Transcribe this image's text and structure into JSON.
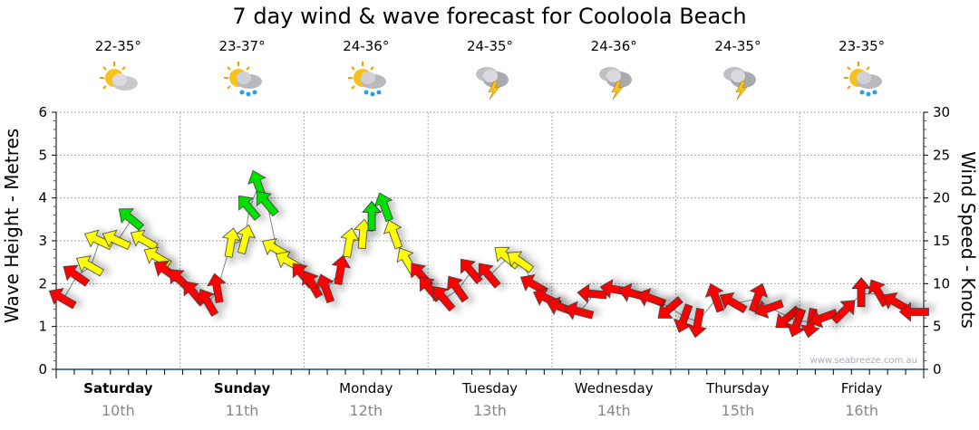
{
  "chart_data": {
    "type": "scatter",
    "title": "7 day wind & wave forecast for Cooloola Beach",
    "ylabel": "Wave Height - Metres",
    "y2label": "Wind Speed - Knots",
    "ylim": [
      0,
      6
    ],
    "y2lim": [
      0,
      30
    ],
    "yticks": [
      "0",
      "1",
      "2",
      "3",
      "4",
      "5",
      "6"
    ],
    "y2ticks": [
      "0",
      "5",
      "10",
      "15",
      "20",
      "25",
      "30"
    ],
    "xlim_hours": [
      0,
      168
    ],
    "grid": true,
    "watermark": "www.seabreeze.com.au",
    "days": [
      {
        "name": "Saturday",
        "date": "10th",
        "bold": true,
        "temp": "22-35°",
        "icon": "partly-cloudy-icon"
      },
      {
        "name": "Sunday",
        "date": "11th",
        "bold": true,
        "temp": "23-37°",
        "icon": "sun-rain-icon"
      },
      {
        "name": "Monday",
        "date": "12th",
        "bold": false,
        "temp": "24-36°",
        "icon": "sun-rain-icon"
      },
      {
        "name": "Tuesday",
        "date": "13th",
        "bold": false,
        "temp": "24-35°",
        "icon": "thunderstorm-icon"
      },
      {
        "name": "Wednesday",
        "date": "14th",
        "bold": false,
        "temp": "24-36°",
        "icon": "thunderstorm-icon"
      },
      {
        "name": "Thursday",
        "date": "15th",
        "bold": false,
        "temp": "24-35°",
        "icon": "thunderstorm-icon"
      },
      {
        "name": "Friday",
        "date": "16th",
        "bold": false,
        "temp": "23-35°",
        "icon": "sun-rain-icon"
      }
    ],
    "colors": {
      "red": "#ff0000",
      "yellow": "#ffff00",
      "green": "#00e000"
    },
    "series": [
      {
        "name": "Wind",
        "points": [
          {
            "h": 1.4,
            "kn": 8.2,
            "dir": 300,
            "c": "red"
          },
          {
            "h": 4,
            "kn": 10.9,
            "dir": 305,
            "c": "red"
          },
          {
            "h": 6.7,
            "kn": 12,
            "dir": 300,
            "c": "yellow"
          },
          {
            "h": 8.4,
            "kn": 15,
            "dir": 295,
            "c": "yellow"
          },
          {
            "h": 11.9,
            "kn": 15,
            "dir": 295,
            "c": "yellow"
          },
          {
            "h": 14.6,
            "kn": 17.5,
            "dir": 310,
            "c": "green"
          },
          {
            "h": 17.2,
            "kn": 15,
            "dir": 300,
            "c": "yellow"
          },
          {
            "h": 19.8,
            "kn": 13,
            "dir": 300,
            "c": "yellow"
          },
          {
            "h": 21.6,
            "kn": 11.4,
            "dir": 305,
            "c": "red"
          },
          {
            "h": 24.2,
            "kn": 10.3,
            "dir": 315,
            "c": "red"
          },
          {
            "h": 26.8,
            "kn": 8.8,
            "dir": 320,
            "c": "red"
          },
          {
            "h": 29.5,
            "kn": 7.7,
            "dir": 330,
            "c": "red"
          },
          {
            "h": 31.2,
            "kn": 9.3,
            "dir": 350,
            "c": "red"
          },
          {
            "h": 33.8,
            "kn": 14.6,
            "dir": 10,
            "c": "yellow"
          },
          {
            "h": 36.5,
            "kn": 15,
            "dir": 15,
            "c": "yellow"
          },
          {
            "h": 37.4,
            "kn": 18.8,
            "dir": 320,
            "c": "green"
          },
          {
            "h": 39.2,
            "kn": 21.4,
            "dir": 340,
            "c": "green"
          },
          {
            "h": 40.9,
            "kn": 19.3,
            "dir": 320,
            "c": "green"
          },
          {
            "h": 42.7,
            "kn": 14,
            "dir": 300,
            "c": "yellow"
          },
          {
            "h": 45.3,
            "kn": 12.5,
            "dir": 300,
            "c": "yellow"
          },
          {
            "h": 47.9,
            "kn": 10.9,
            "dir": 320,
            "c": "red"
          },
          {
            "h": 49.7,
            "kn": 9.8,
            "dir": 330,
            "c": "red"
          },
          {
            "h": 52.3,
            "kn": 9.3,
            "dir": 340,
            "c": "red"
          },
          {
            "h": 55,
            "kn": 11.4,
            "dir": 10,
            "c": "red"
          },
          {
            "h": 56.7,
            "kn": 14.6,
            "dir": 10,
            "c": "yellow"
          },
          {
            "h": 59.4,
            "kn": 15.6,
            "dir": 5,
            "c": "yellow"
          },
          {
            "h": 61.1,
            "kn": 17.7,
            "dir": 0,
            "c": "green"
          },
          {
            "h": 63.7,
            "kn": 18.8,
            "dir": 340,
            "c": "green"
          },
          {
            "h": 65.5,
            "kn": 15.6,
            "dir": 340,
            "c": "yellow"
          },
          {
            "h": 68.1,
            "kn": 12.5,
            "dir": 330,
            "c": "yellow"
          },
          {
            "h": 70.8,
            "kn": 10.9,
            "dir": 320,
            "c": "red"
          },
          {
            "h": 72.5,
            "kn": 9.3,
            "dir": 320,
            "c": "red"
          },
          {
            "h": 75.1,
            "kn": 8.2,
            "dir": 320,
            "c": "red"
          },
          {
            "h": 77.8,
            "kn": 9.3,
            "dir": 325,
            "c": "red"
          },
          {
            "h": 80.4,
            "kn": 11.4,
            "dir": 320,
            "c": "red"
          },
          {
            "h": 83.9,
            "kn": 10.9,
            "dir": 320,
            "c": "red"
          },
          {
            "h": 87.4,
            "kn": 13,
            "dir": 310,
            "c": "yellow"
          },
          {
            "h": 90,
            "kn": 12.5,
            "dir": 305,
            "c": "yellow"
          },
          {
            "h": 92.7,
            "kn": 9.8,
            "dir": 300,
            "c": "red"
          },
          {
            "h": 95.3,
            "kn": 8.2,
            "dir": 295,
            "c": "red"
          },
          {
            "h": 98,
            "kn": 7.2,
            "dir": 290,
            "c": "red"
          },
          {
            "h": 101.5,
            "kn": 6.7,
            "dir": 285,
            "c": "red"
          },
          {
            "h": 104.1,
            "kn": 8.8,
            "dir": 275,
            "c": "red"
          },
          {
            "h": 108.5,
            "kn": 9.3,
            "dir": 280,
            "c": "red"
          },
          {
            "h": 112,
            "kn": 8.8,
            "dir": 285,
            "c": "red"
          },
          {
            "h": 115.5,
            "kn": 8.2,
            "dir": 290,
            "c": "red"
          },
          {
            "h": 119,
            "kn": 7.2,
            "dir": 230,
            "c": "red"
          },
          {
            "h": 121.7,
            "kn": 6.1,
            "dir": 200,
            "c": "red"
          },
          {
            "h": 124.3,
            "kn": 5.6,
            "dir": 190,
            "c": "red"
          },
          {
            "h": 127.8,
            "kn": 8.2,
            "dir": 340,
            "c": "red"
          },
          {
            "h": 131.3,
            "kn": 7.7,
            "dir": 300,
            "c": "red"
          },
          {
            "h": 135.7,
            "kn": 8.2,
            "dir": 20,
            "c": "red"
          },
          {
            "h": 138.3,
            "kn": 7.2,
            "dir": 250,
            "c": "red"
          },
          {
            "h": 141.8,
            "kn": 6.1,
            "dir": 230,
            "c": "red"
          },
          {
            "h": 143.6,
            "kn": 5.6,
            "dir": 200,
            "c": "red"
          },
          {
            "h": 146.2,
            "kn": 5.6,
            "dir": 190,
            "c": "red"
          },
          {
            "h": 148.8,
            "kn": 6.1,
            "dir": 250,
            "c": "red"
          },
          {
            "h": 152.4,
            "kn": 6.7,
            "dir": 45,
            "c": "red"
          },
          {
            "h": 155.9,
            "kn": 8.8,
            "dir": 0,
            "c": "red"
          },
          {
            "h": 159.4,
            "kn": 8.8,
            "dir": 330,
            "c": "red"
          },
          {
            "h": 162.9,
            "kn": 7.7,
            "dir": 300,
            "c": "red"
          },
          {
            "h": 166.5,
            "kn": 6.7,
            "dir": 270,
            "c": "red"
          }
        ]
      }
    ]
  }
}
